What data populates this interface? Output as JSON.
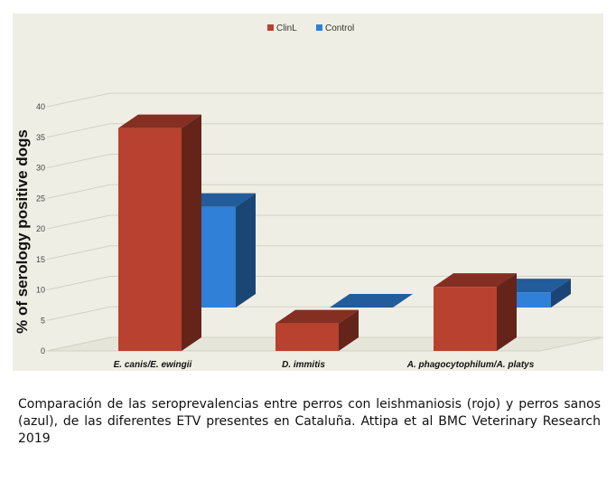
{
  "chart_data": {
    "type": "bar",
    "style": "3d",
    "categories": [
      "E. canis/E. ewingii",
      "D. immitis",
      "A. phagocytophilum/A. platys"
    ],
    "series": [
      {
        "name": "ClinL",
        "color": "#b8412f",
        "values": [
          36.5,
          4.5,
          10.5
        ]
      },
      {
        "name": "Control",
        "color": "#2f80d6",
        "values": [
          16.5,
          0,
          2.5
        ]
      }
    ],
    "ylabel": "% of serology positive dogs",
    "ylim": [
      0,
      40
    ],
    "yticks": [
      0,
      5,
      10,
      15,
      20,
      25,
      30,
      35,
      40
    ],
    "grid": true,
    "legend_position": "top-center",
    "background_color": "#efeee4"
  },
  "caption": "Comparación de las seroprevalencias entre perros con leishmaniosis (rojo) y perros sanos (azul), de las diferentes ETV presentes en Cataluña. Attipa et al BMC Veterinary Research 2019"
}
